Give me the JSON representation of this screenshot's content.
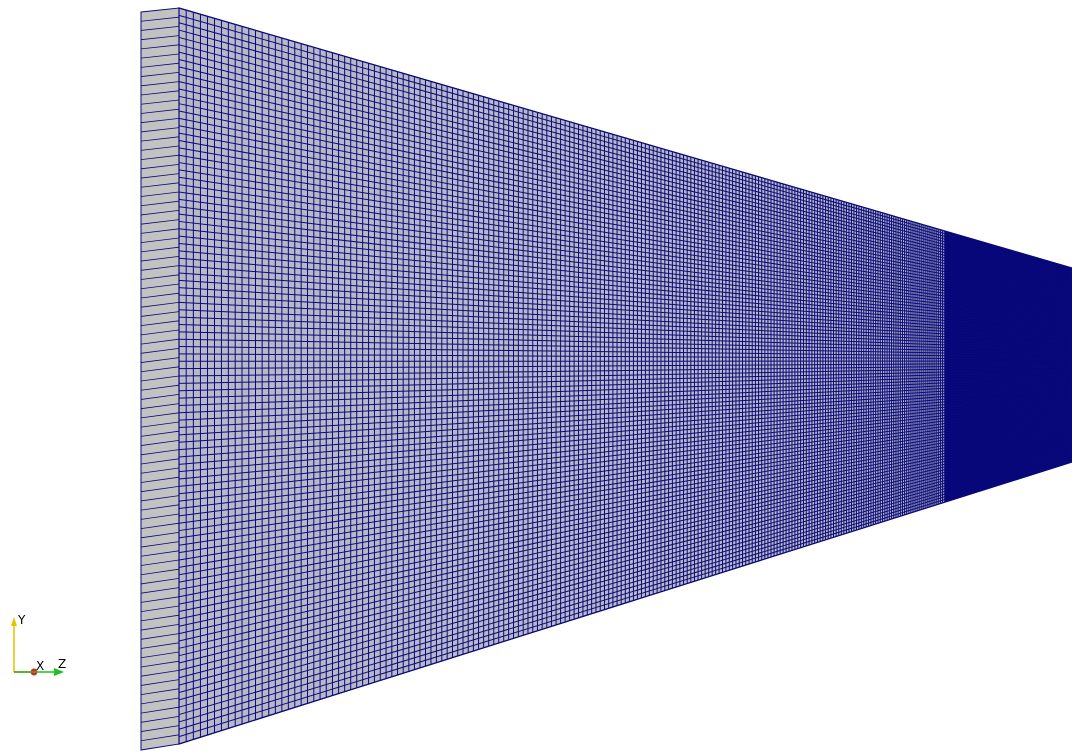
{
  "scene": {
    "background_color": "#ffffff",
    "mesh": {
      "edge_color": "#0a0a7a",
      "face_color": "#b8b8c8",
      "side_face_color": "#c2c2c2",
      "dense_fill_color": "#06067a"
    }
  },
  "orientation_axes": {
    "y_label": "Y",
    "x_label": "X",
    "z_label": "Z",
    "y_color": "#e6c300",
    "x_color": "#e02020",
    "z_color": "#20c020"
  }
}
